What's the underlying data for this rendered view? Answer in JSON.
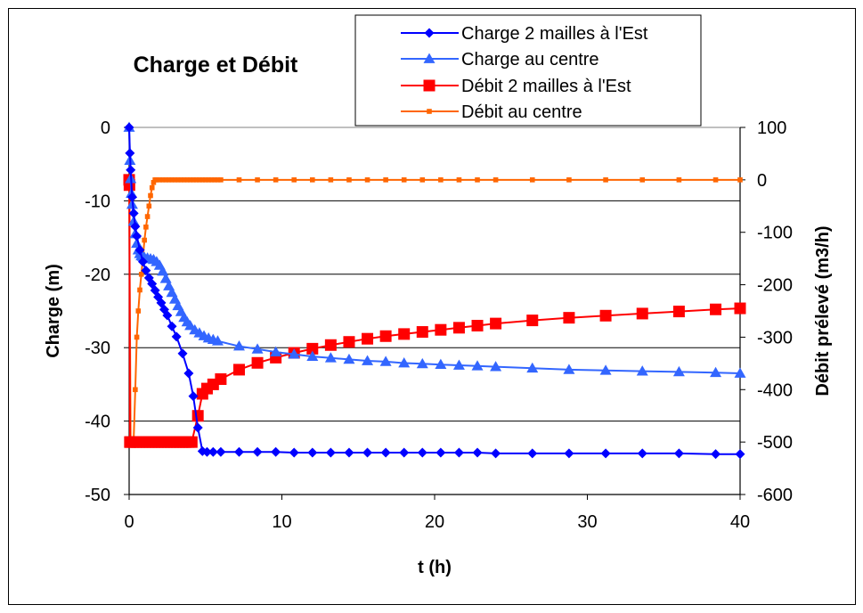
{
  "chart_data": {
    "type": "line",
    "title": "Charge et Débit",
    "xlabel": "t (h)",
    "ylabel_left": "Charge (m)",
    "ylabel_right": "Débit prélevé (m3/h)",
    "xlim": [
      0,
      40
    ],
    "ylim_left": [
      -50,
      0
    ],
    "ylim_right": [
      -600,
      100
    ],
    "x_ticks": [
      "0",
      "10",
      "20",
      "30",
      "40"
    ],
    "y_left_ticks": [
      "0",
      "-10",
      "-20",
      "-30",
      "-40",
      "-50"
    ],
    "y_right_ticks": [
      "100",
      "0",
      "-100",
      "-200",
      "-300",
      "-400",
      "-500",
      "-600"
    ],
    "grid": true,
    "legend_position": "top-center",
    "series": [
      {
        "name": "Charge 2 mailles à l'Est",
        "axis": "left",
        "color": "#0000ff",
        "marker": "diamond",
        "x": [
          0,
          0.05,
          0.1,
          0.2,
          0.3,
          0.4,
          0.5,
          0.7,
          0.9,
          1.1,
          1.3,
          1.5,
          1.7,
          1.9,
          2.1,
          2.3,
          2.5,
          2.8,
          3.1,
          3.5,
          3.9,
          4.2,
          4.5,
          4.8,
          5.1,
          5.5,
          6.0,
          7.2,
          8.4,
          9.6,
          10.8,
          12.0,
          13.2,
          14.4,
          15.6,
          16.8,
          18.0,
          19.2,
          20.4,
          21.6,
          22.8,
          24.0,
          26.4,
          28.8,
          31.2,
          33.6,
          36.0,
          38.4,
          40.0
        ],
        "y": [
          0,
          -3.5,
          -5.8,
          -9.5,
          -11.7,
          -13.5,
          -14.8,
          -16.7,
          -18.3,
          -19.5,
          -20.5,
          -21.3,
          -22.2,
          -23.1,
          -23.9,
          -24.8,
          -25.6,
          -27.1,
          -28.5,
          -30.8,
          -33.5,
          -36.6,
          -40.9,
          -44.1,
          -44.2,
          -44.2,
          -44.2,
          -44.2,
          -44.2,
          -44.2,
          -44.3,
          -44.3,
          -44.3,
          -44.3,
          -44.3,
          -44.3,
          -44.3,
          -44.3,
          -44.3,
          -44.3,
          -44.3,
          -44.4,
          -44.4,
          -44.4,
          -44.4,
          -44.4,
          -44.4,
          -44.5,
          -44.5
        ]
      },
      {
        "name": "Charge au centre",
        "axis": "left",
        "color": "#3366ff",
        "marker": "triangle",
        "x": [
          0,
          0.05,
          0.1,
          0.15,
          0.2,
          0.3,
          0.4,
          0.5,
          0.6,
          0.7,
          0.8,
          0.9,
          1.0,
          1.2,
          1.4,
          1.6,
          1.8,
          2.0,
          2.2,
          2.4,
          2.6,
          2.8,
          3.0,
          3.2,
          3.4,
          3.6,
          3.8,
          4.0,
          4.3,
          4.6,
          4.9,
          5.2,
          5.5,
          5.8,
          7.2,
          8.4,
          9.6,
          10.8,
          12.0,
          13.2,
          14.4,
          15.6,
          16.8,
          18.0,
          19.2,
          20.4,
          21.6,
          22.8,
          24.0,
          26.4,
          28.8,
          31.2,
          33.6,
          36.0,
          38.4,
          40.0
        ],
        "y": [
          0,
          -4.5,
          -7.0,
          -9.0,
          -10.5,
          -12.8,
          -14.5,
          -15.8,
          -16.7,
          -17.2,
          -17.5,
          -17.6,
          -17.7,
          -17.8,
          -17.9,
          -18.0,
          -18.3,
          -18.8,
          -19.6,
          -20.6,
          -21.6,
          -22.5,
          -23.4,
          -24.3,
          -25.1,
          -25.9,
          -26.5,
          -27.0,
          -27.6,
          -28.0,
          -28.4,
          -28.7,
          -28.9,
          -29.1,
          -29.8,
          -30.2,
          -30.6,
          -30.9,
          -31.2,
          -31.4,
          -31.6,
          -31.8,
          -31.9,
          -32.1,
          -32.2,
          -32.3,
          -32.4,
          -32.5,
          -32.6,
          -32.8,
          -33.0,
          -33.1,
          -33.2,
          -33.3,
          -33.4,
          -33.5
        ]
      },
      {
        "name": "Débit 2 mailles à l'Est",
        "axis": "right",
        "color": "#ff0000",
        "marker": "square",
        "x": [
          0,
          0.02,
          0.05,
          0.1,
          0.3,
          0.5,
          0.7,
          0.9,
          1.1,
          1.3,
          1.5,
          1.7,
          1.9,
          2.1,
          2.3,
          2.5,
          2.7,
          2.9,
          3.1,
          3.3,
          3.5,
          3.7,
          3.9,
          4.1,
          4.5,
          4.8,
          5.1,
          5.5,
          6.0,
          7.2,
          8.4,
          9.6,
          10.8,
          12.0,
          13.2,
          14.4,
          15.6,
          16.8,
          18.0,
          19.2,
          20.4,
          21.6,
          22.8,
          24.0,
          26.4,
          28.8,
          31.2,
          33.6,
          36.0,
          38.4,
          40.0
        ],
        "y": [
          0,
          -10,
          -500,
          -500,
          -500,
          -500,
          -500,
          -500,
          -500,
          -500,
          -500,
          -500,
          -500,
          -500,
          -500,
          -500,
          -500,
          -500,
          -500,
          -500,
          -500,
          -500,
          -500,
          -500,
          -450,
          -408,
          -398,
          -390,
          -380,
          -362,
          -349,
          -339,
          -330,
          -322,
          -315,
          -309,
          -303,
          -298,
          -294,
          -290,
          -286,
          -282,
          -278,
          -274,
          -268,
          -263,
          -259,
          -255,
          -251,
          -247,
          -245
        ]
      },
      {
        "name": "Débit au centre",
        "axis": "right",
        "color": "#ff6600",
        "marker": "square-small",
        "x": [
          0,
          0.1,
          0.2,
          0.3,
          0.4,
          0.5,
          0.6,
          0.7,
          0.8,
          0.9,
          1.0,
          1.1,
          1.2,
          1.3,
          1.4,
          1.5,
          1.6,
          1.7,
          1.8,
          2.0,
          2.2,
          2.4,
          2.6,
          2.8,
          3.0,
          3.2,
          3.4,
          3.6,
          3.8,
          4.0,
          4.2,
          4.4,
          4.6,
          4.8,
          5.0,
          5.2,
          5.4,
          5.6,
          5.8,
          6.0,
          7.2,
          8.4,
          9.6,
          10.8,
          12.0,
          13.2,
          14.4,
          15.6,
          16.8,
          18.0,
          19.2,
          20.4,
          21.6,
          22.8,
          24.0,
          26.4,
          28.8,
          31.2,
          33.6,
          36.0,
          38.4,
          40.0
        ],
        "y": [
          0,
          -500,
          -500,
          -495,
          -400,
          -300,
          -250,
          -210,
          -180,
          -150,
          -115,
          -90,
          -70,
          -50,
          -30,
          -15,
          -5,
          0,
          0,
          0,
          0,
          0,
          0,
          0,
          0,
          0,
          0,
          0,
          0,
          0,
          0,
          0,
          0,
          0,
          0,
          0,
          0,
          0,
          0,
          0,
          0,
          0,
          0,
          0,
          0,
          0,
          0,
          0,
          0,
          0,
          0,
          0,
          0,
          0,
          0,
          0,
          0,
          0,
          0,
          0,
          0,
          0
        ]
      }
    ]
  }
}
